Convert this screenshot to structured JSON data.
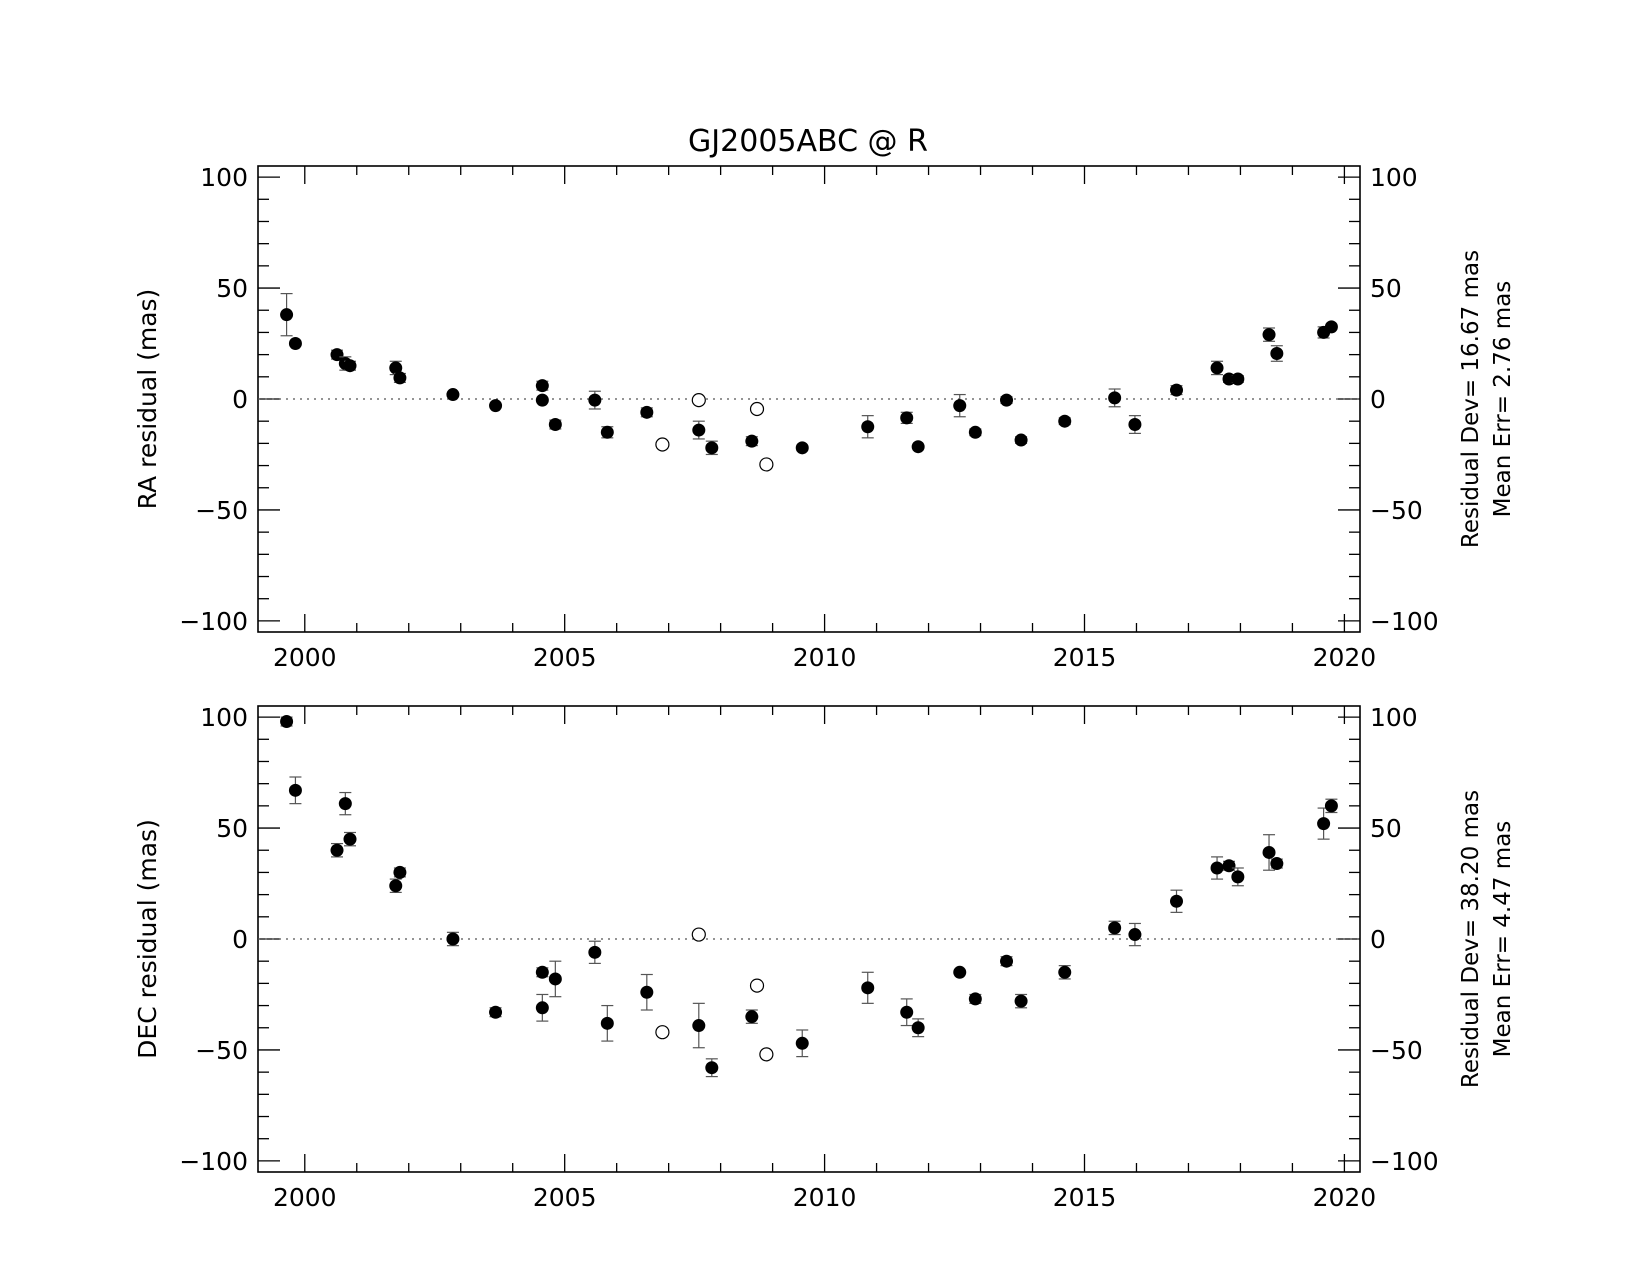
{
  "figure_title": "GJ2005ABC @ R",
  "chart_data": [
    {
      "type": "scatter",
      "ylabel": "RA residual (mas)",
      "xlabel": "",
      "xlim": [
        1999.1,
        2020.3
      ],
      "ylim": [
        -105,
        105
      ],
      "x_ticks": [
        2000,
        2005,
        2010,
        2015,
        2020
      ],
      "y_ticks": [
        -100,
        -50,
        0,
        50,
        100
      ],
      "zero_line": true,
      "stats": {
        "residual_dev": "Residual Dev= 16.67 mas",
        "mean_err": "Mean Err= 2.76 mas"
      },
      "series": [
        {
          "marker": "filled-circle",
          "points": [
            {
              "x": 1999.65,
              "y": 38,
              "err": 9.5
            },
            {
              "x": 1999.82,
              "y": 25,
              "err": 1
            },
            {
              "x": 2000.62,
              "y": 20,
              "err": 2
            },
            {
              "x": 2000.78,
              "y": 16,
              "err": 3
            },
            {
              "x": 2000.87,
              "y": 15,
              "err": 2
            },
            {
              "x": 2001.75,
              "y": 14,
              "err": 3
            },
            {
              "x": 2001.83,
              "y": 9.5,
              "err": 2
            },
            {
              "x": 2002.85,
              "y": 2,
              "err": 1
            },
            {
              "x": 2003.67,
              "y": -3,
              "err": 1
            },
            {
              "x": 2004.57,
              "y": 6,
              "err": 2
            },
            {
              "x": 2004.57,
              "y": -0.5,
              "err": 1
            },
            {
              "x": 2004.82,
              "y": -11.5,
              "err": 2
            },
            {
              "x": 2005.58,
              "y": -0.5,
              "err": 4
            },
            {
              "x": 2005.82,
              "y": -15,
              "err": 2.5
            },
            {
              "x": 2006.58,
              "y": -6,
              "err": 2
            },
            {
              "x": 2007.58,
              "y": -14,
              "err": 4
            },
            {
              "x": 2007.83,
              "y": -22,
              "err": 3
            },
            {
              "x": 2008.6,
              "y": -19,
              "err": 2
            },
            {
              "x": 2009.57,
              "y": -22,
              "err": 1
            },
            {
              "x": 2010.83,
              "y": -12.5,
              "err": 5
            },
            {
              "x": 2011.58,
              "y": -8.5,
              "err": 2.5
            },
            {
              "x": 2011.8,
              "y": -21.5,
              "err": 1
            },
            {
              "x": 2012.6,
              "y": -3,
              "err": 5
            },
            {
              "x": 2012.9,
              "y": -15,
              "err": 1.5
            },
            {
              "x": 2013.5,
              "y": -0.5,
              "err": 1.5
            },
            {
              "x": 2013.78,
              "y": -18.5,
              "err": 1.5
            },
            {
              "x": 2014.62,
              "y": -10,
              "err": 1.5
            },
            {
              "x": 2015.58,
              "y": 0.5,
              "err": 4
            },
            {
              "x": 2015.97,
              "y": -11.5,
              "err": 4
            },
            {
              "x": 2016.77,
              "y": 4,
              "err": 2
            },
            {
              "x": 2017.55,
              "y": 14,
              "err": 3
            },
            {
              "x": 2017.78,
              "y": 9,
              "err": 1.5
            },
            {
              "x": 2017.95,
              "y": 9,
              "err": 1.5
            },
            {
              "x": 2018.55,
              "y": 29,
              "err": 3
            },
            {
              "x": 2018.7,
              "y": 20.5,
              "err": 3.5
            },
            {
              "x": 2019.6,
              "y": 30,
              "err": 2.5
            },
            {
              "x": 2019.75,
              "y": 32.5,
              "err": 1
            }
          ]
        },
        {
          "marker": "open-circle",
          "points": [
            {
              "x": 2006.88,
              "y": -20.5
            },
            {
              "x": 2007.58,
              "y": -0.5
            },
            {
              "x": 2008.7,
              "y": -4.5
            },
            {
              "x": 2008.88,
              "y": -29.5
            }
          ]
        }
      ]
    },
    {
      "type": "scatter",
      "ylabel": "DEC residual (mas)",
      "xlabel": "",
      "xlim": [
        1999.1,
        2020.3
      ],
      "ylim": [
        -105,
        105
      ],
      "x_ticks": [
        2000,
        2005,
        2010,
        2015,
        2020
      ],
      "y_ticks": [
        -100,
        -50,
        0,
        50,
        100
      ],
      "zero_line": true,
      "stats": {
        "residual_dev": "Residual Dev= 38.20 mas",
        "mean_err": "Mean Err= 4.47 mas"
      },
      "series": [
        {
          "marker": "filled-circle",
          "points": [
            {
              "x": 1999.65,
              "y": 98,
              "err": 2
            },
            {
              "x": 1999.82,
              "y": 67,
              "err": 6
            },
            {
              "x": 2000.62,
              "y": 40,
              "err": 3
            },
            {
              "x": 2000.78,
              "y": 61,
              "err": 5
            },
            {
              "x": 2000.87,
              "y": 45,
              "err": 3
            },
            {
              "x": 2001.75,
              "y": 24,
              "err": 3
            },
            {
              "x": 2001.83,
              "y": 30,
              "err": 2
            },
            {
              "x": 2002.85,
              "y": 0,
              "err": 3
            },
            {
              "x": 2003.67,
              "y": -33,
              "err": 2
            },
            {
              "x": 2004.57,
              "y": -15,
              "err": 2
            },
            {
              "x": 2004.57,
              "y": -31,
              "err": 6
            },
            {
              "x": 2004.82,
              "y": -18,
              "err": 8
            },
            {
              "x": 2005.58,
              "y": -6,
              "err": 5
            },
            {
              "x": 2005.82,
              "y": -38,
              "err": 8
            },
            {
              "x": 2006.58,
              "y": -24,
              "err": 8
            },
            {
              "x": 2007.58,
              "y": -39,
              "err": 10
            },
            {
              "x": 2007.83,
              "y": -58,
              "err": 4
            },
            {
              "x": 2008.6,
              "y": -35,
              "err": 3
            },
            {
              "x": 2009.57,
              "y": -47,
              "err": 6
            },
            {
              "x": 2010.83,
              "y": -22,
              "err": 7
            },
            {
              "x": 2011.58,
              "y": -33,
              "err": 6
            },
            {
              "x": 2011.8,
              "y": -40,
              "err": 4
            },
            {
              "x": 2012.6,
              "y": -15,
              "err": 1
            },
            {
              "x": 2012.9,
              "y": -27,
              "err": 2
            },
            {
              "x": 2013.5,
              "y": -10,
              "err": 2
            },
            {
              "x": 2013.78,
              "y": -28,
              "err": 3
            },
            {
              "x": 2014.62,
              "y": -15,
              "err": 3
            },
            {
              "x": 2015.58,
              "y": 5,
              "err": 3
            },
            {
              "x": 2015.97,
              "y": 2,
              "err": 5
            },
            {
              "x": 2016.77,
              "y": 17,
              "err": 5
            },
            {
              "x": 2017.55,
              "y": 32,
              "err": 5
            },
            {
              "x": 2017.78,
              "y": 33,
              "err": 2
            },
            {
              "x": 2017.95,
              "y": 28,
              "err": 4
            },
            {
              "x": 2018.55,
              "y": 39,
              "err": 8
            },
            {
              "x": 2018.7,
              "y": 34,
              "err": 2
            },
            {
              "x": 2019.6,
              "y": 52,
              "err": 7
            },
            {
              "x": 2019.75,
              "y": 60,
              "err": 3
            }
          ]
        },
        {
          "marker": "open-circle",
          "points": [
            {
              "x": 2006.88,
              "y": -42
            },
            {
              "x": 2007.58,
              "y": 2
            },
            {
              "x": 2008.7,
              "y": -21
            },
            {
              "x": 2008.88,
              "y": -52
            }
          ]
        }
      ]
    }
  ]
}
